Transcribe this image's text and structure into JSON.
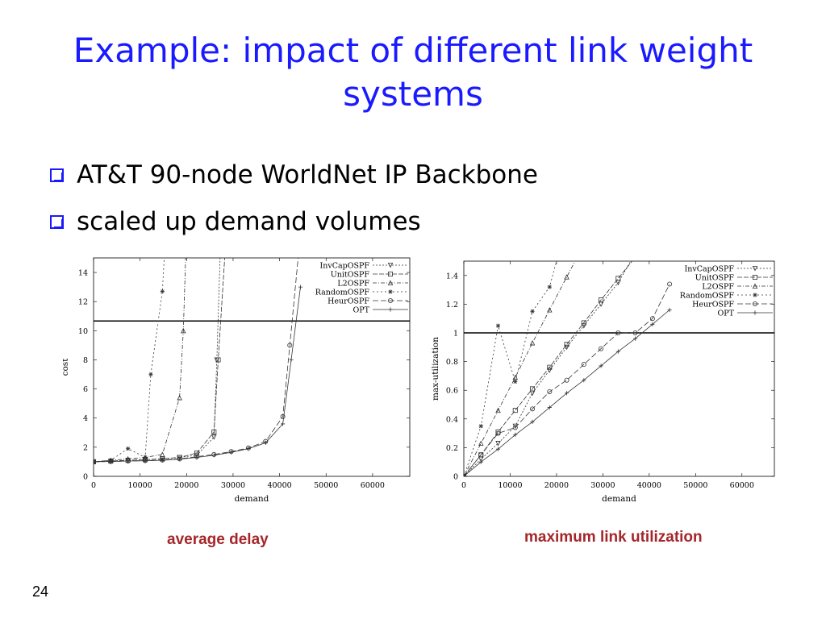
{
  "slide": {
    "title": "Example: impact of different link weight systems",
    "bullets": [
      "AT&T 90-node WorldNet IP Backbone",
      "scaled up demand volumes"
    ],
    "page_number": "24",
    "colors": {
      "title": "#1a1aff",
      "caption": "#a3262a"
    },
    "bullet_icon": "checkbox-square-icon"
  },
  "chart_data": [
    {
      "type": "line",
      "caption": "average delay",
      "xlabel": "demand",
      "ylabel": "cost",
      "xlim": [
        0,
        68000
      ],
      "ylim": [
        0,
        15
      ],
      "xticks": [
        0,
        10000,
        20000,
        30000,
        40000,
        50000,
        60000
      ],
      "yticks": [
        0,
        2,
        4,
        6,
        8,
        10,
        12,
        14
      ],
      "hline": 10.67,
      "legend_position": "top-right",
      "series": [
        {
          "name": "InvCapOSPF",
          "dash": "2,2",
          "marker": "tri-down",
          "x": [
            0,
            3700,
            7400,
            11100,
            14800,
            18500,
            22200,
            25900,
            26500,
            27200
          ],
          "y": [
            1.0,
            1.05,
            1.1,
            1.15,
            1.2,
            1.3,
            1.45,
            2.7,
            8,
            15
          ]
        },
        {
          "name": "UnitOSPF",
          "dash": "6,2",
          "marker": "square",
          "x": [
            0,
            3700,
            7400,
            11100,
            14800,
            18500,
            22200,
            25900,
            26800,
            28200
          ],
          "y": [
            1.0,
            1.05,
            1.1,
            1.15,
            1.2,
            1.3,
            1.6,
            3.05,
            8,
            15
          ]
        },
        {
          "name": "L2OSPF",
          "dash": "5,2,1,2",
          "marker": "tri-up",
          "x": [
            0,
            3700,
            7400,
            11100,
            14800,
            18500,
            19300,
            19800
          ],
          "y": [
            1.0,
            1.1,
            1.2,
            1.3,
            1.5,
            5.4,
            10,
            15
          ]
        },
        {
          "name": "RandomOSPF",
          "dash": "2,3",
          "marker": "star",
          "x": [
            0,
            3700,
            7400,
            11100,
            12300,
            14800,
            15200
          ],
          "y": [
            1.0,
            1.1,
            1.9,
            1.3,
            7,
            12.7,
            15
          ]
        },
        {
          "name": "HeurOSPF",
          "dash": "7,3",
          "marker": "circle",
          "x": [
            0,
            3700,
            7400,
            11100,
            14800,
            18500,
            22200,
            25900,
            29600,
            33300,
            37000,
            40700,
            42200,
            44000
          ],
          "y": [
            1.0,
            1.02,
            1.05,
            1.08,
            1.12,
            1.2,
            1.35,
            1.5,
            1.7,
            1.95,
            2.4,
            4.1,
            9,
            15
          ]
        },
        {
          "name": "OPT",
          "dash": "",
          "marker": "plus",
          "x": [
            0,
            3700,
            7400,
            11100,
            14800,
            18500,
            22200,
            25900,
            29600,
            33300,
            37000,
            40700,
            42500,
            44500
          ],
          "y": [
            1.0,
            1.02,
            1.05,
            1.07,
            1.1,
            1.18,
            1.3,
            1.45,
            1.65,
            1.9,
            2.3,
            3.6,
            8,
            13.0
          ]
        }
      ]
    },
    {
      "type": "line",
      "caption": "maximum link utilization",
      "xlabel": "demand",
      "ylabel": "max-utilization",
      "xlim": [
        0,
        67000
      ],
      "ylim": [
        0,
        1.5
      ],
      "xticks": [
        0,
        10000,
        20000,
        30000,
        40000,
        50000,
        60000
      ],
      "yticks": [
        0,
        0.2,
        0.4,
        0.6,
        0.8,
        1,
        1.2,
        1.4
      ],
      "ytick_labels": [
        "0",
        "0.2",
        "0.4",
        "0.6",
        "0.8",
        "1",
        "1.2",
        "1.4"
      ],
      "hline": 1.0,
      "legend_position": "top-right",
      "series": [
        {
          "name": "InvCapOSPF",
          "dash": "2,2",
          "marker": "tri-down",
          "x": [
            0,
            3700,
            7400,
            11100,
            14800,
            18500,
            22200,
            25900,
            29600,
            33300,
            36000
          ],
          "y": [
            0,
            0.12,
            0.23,
            0.35,
            0.58,
            0.74,
            0.9,
            1.05,
            1.2,
            1.35,
            1.5
          ]
        },
        {
          "name": "UnitOSPF",
          "dash": "6,2",
          "marker": "square",
          "x": [
            0,
            3700,
            7400,
            11100,
            14800,
            18500,
            22200,
            25900,
            29600,
            33300,
            36300
          ],
          "y": [
            0,
            0.15,
            0.31,
            0.46,
            0.61,
            0.76,
            0.92,
            1.07,
            1.23,
            1.38,
            1.5
          ]
        },
        {
          "name": "L2OSPF",
          "dash": "5,2,1,2",
          "marker": "tri-up",
          "x": [
            0,
            3700,
            7400,
            11100,
            14800,
            18500,
            22200,
            24000
          ],
          "y": [
            0,
            0.23,
            0.46,
            0.69,
            0.93,
            1.16,
            1.39,
            1.5
          ]
        },
        {
          "name": "RandomOSPF",
          "dash": "2,3",
          "marker": "star",
          "x": [
            0,
            3700,
            7400,
            11100,
            14800,
            18500,
            20000
          ],
          "y": [
            0,
            0.35,
            1.05,
            0.66,
            1.15,
            1.32,
            1.5
          ]
        },
        {
          "name": "HeurOSPF",
          "dash": "7,3",
          "marker": "circle",
          "x": [
            0,
            3700,
            7400,
            11100,
            14800,
            18500,
            22200,
            25900,
            29600,
            33300,
            37000,
            40700,
            44400
          ],
          "y": [
            0,
            0.15,
            0.3,
            0.34,
            0.47,
            0.59,
            0.67,
            0.78,
            0.89,
            1.0,
            1.0,
            1.1,
            1.34
          ]
        },
        {
          "name": "OPT",
          "dash": "",
          "marker": "plus",
          "x": [
            0,
            3700,
            7400,
            11100,
            14800,
            18500,
            22200,
            25900,
            29600,
            33300,
            37000,
            40700,
            44400
          ],
          "y": [
            0,
            0.1,
            0.19,
            0.29,
            0.38,
            0.48,
            0.58,
            0.67,
            0.77,
            0.87,
            0.96,
            1.06,
            1.16
          ]
        }
      ]
    }
  ]
}
